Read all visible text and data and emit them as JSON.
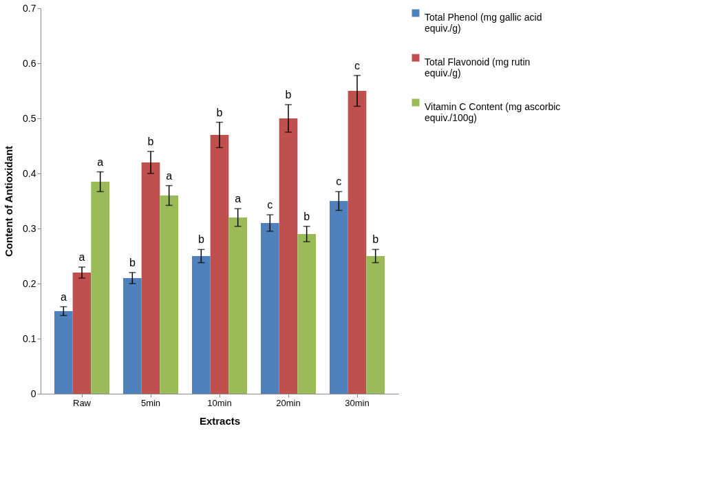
{
  "chart_data": {
    "type": "bar",
    "xlabel": "Extracts",
    "ylabel": "Content of Antioxidant",
    "categories": [
      "Raw",
      "5min",
      "10min",
      "20min",
      "30min"
    ],
    "ylim": [
      0,
      0.7
    ],
    "yticks": [
      0,
      0.1,
      0.2,
      0.3,
      0.4,
      0.5,
      0.6,
      0.7
    ],
    "grid": false,
    "legend": "right",
    "series": [
      {
        "name": "Total Phenol (mg gallic acid equiv./g)",
        "color": "#4f81bd",
        "values": [
          0.15,
          0.21,
          0.25,
          0.31,
          0.35
        ],
        "errors": [
          0.008,
          0.01,
          0.012,
          0.015,
          0.017
        ],
        "value_labels": [
          "a",
          "b",
          "b",
          "c",
          "c"
        ]
      },
      {
        "name": "Total Flavonoid (mg rutin equiv./g)",
        "color": "#c0504d",
        "values": [
          0.22,
          0.42,
          0.47,
          0.5,
          0.55
        ],
        "errors": [
          0.01,
          0.02,
          0.023,
          0.025,
          0.028
        ],
        "value_labels": [
          "a",
          "b",
          "b",
          "b",
          "c"
        ]
      },
      {
        "name": "Vitamin C Content (mg ascorbic equiv./100g)",
        "color": "#9bbb59",
        "values": [
          0.385,
          0.36,
          0.32,
          0.29,
          0.25
        ],
        "errors": [
          0.018,
          0.018,
          0.016,
          0.014,
          0.012
        ],
        "value_labels": [
          "a",
          "a",
          "a",
          "b",
          "b"
        ]
      }
    ]
  }
}
